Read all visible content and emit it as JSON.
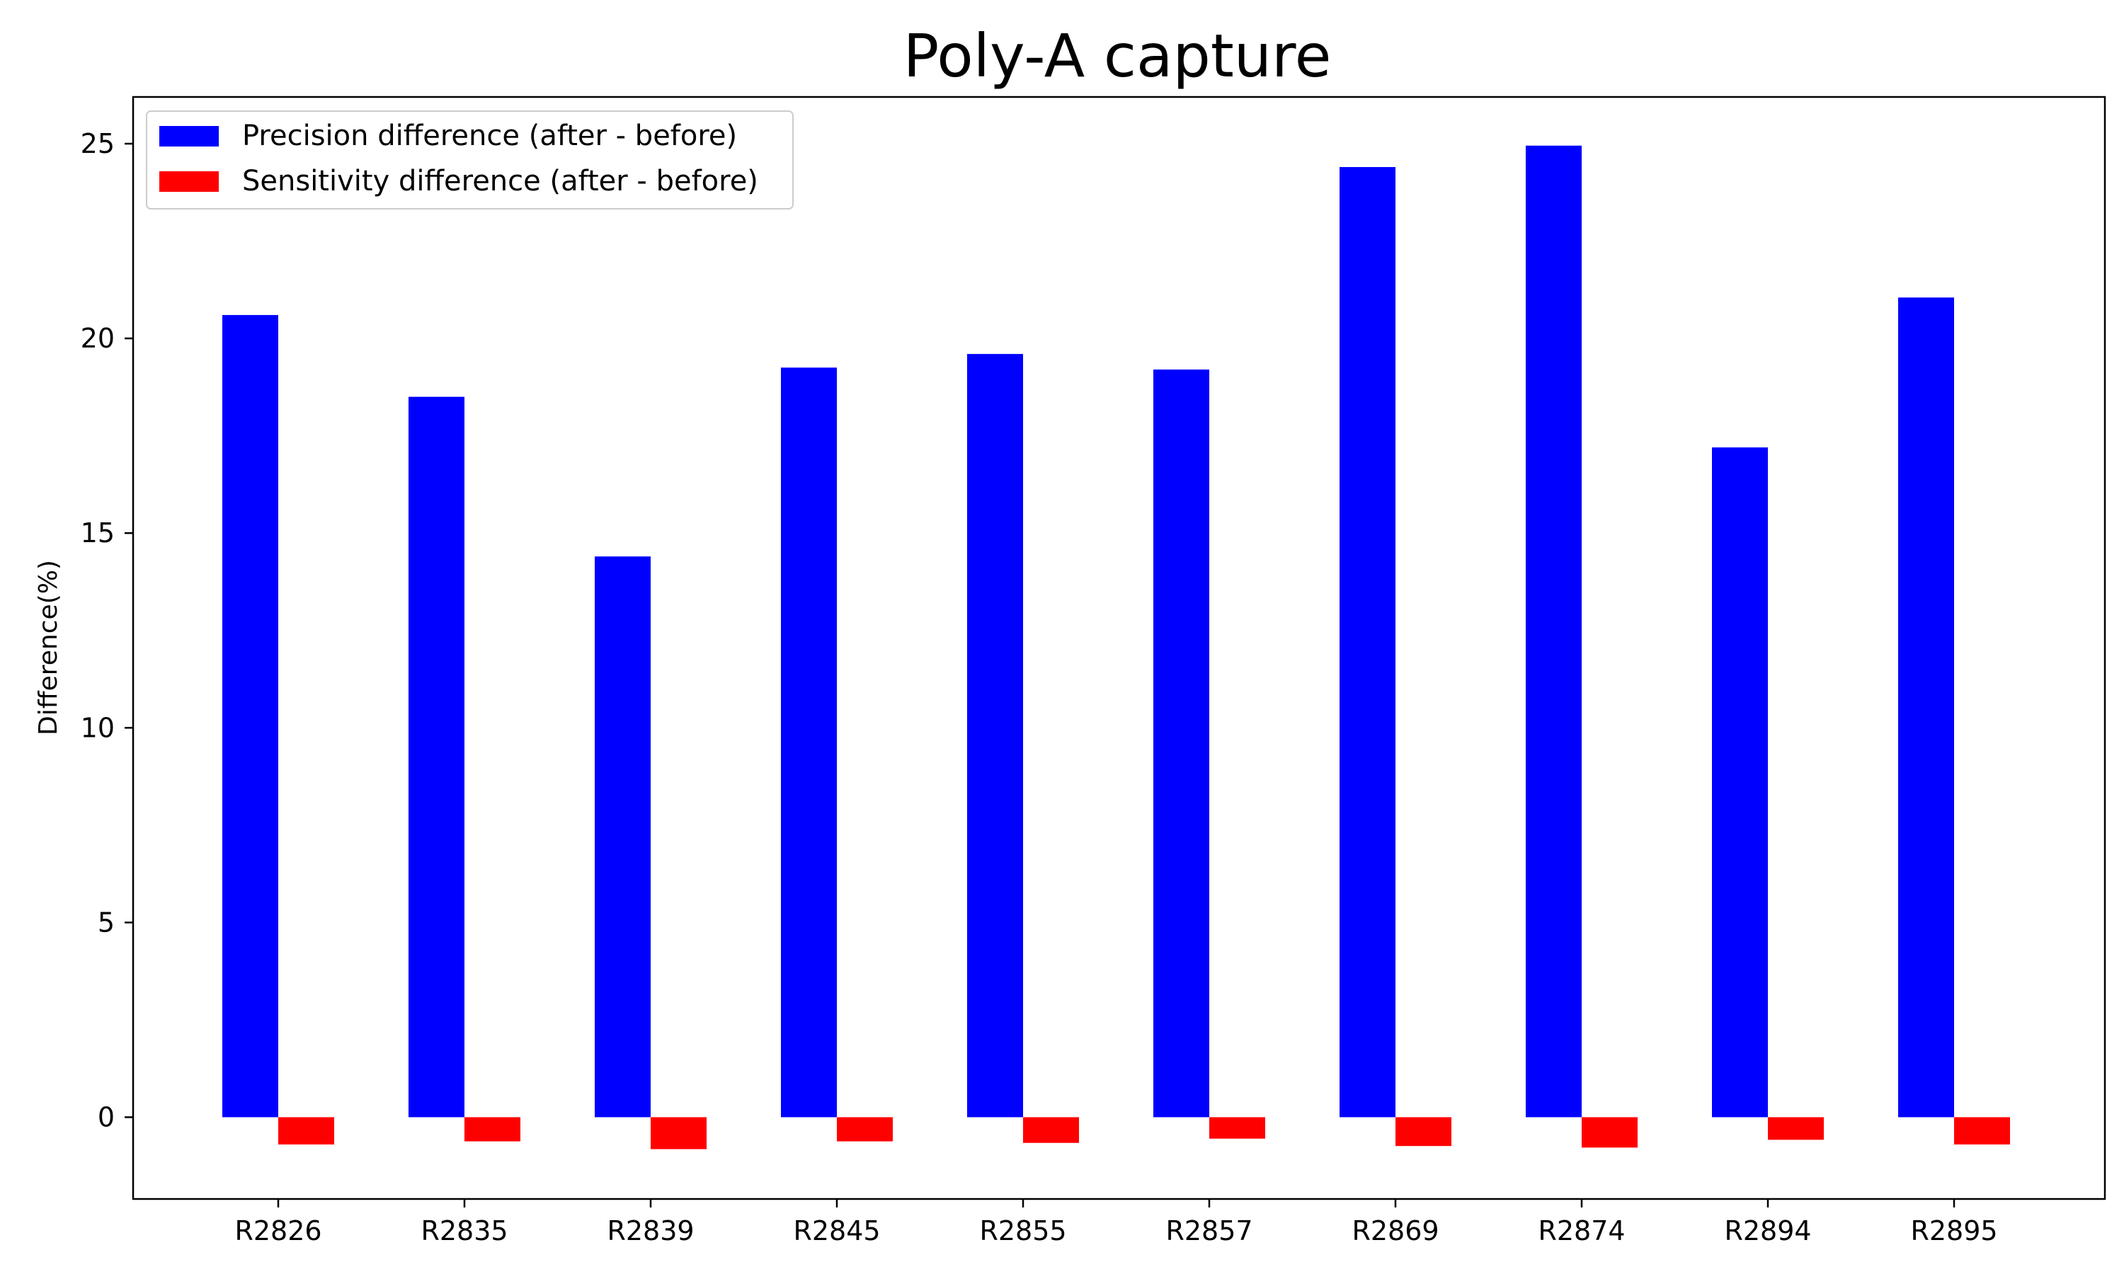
{
  "chart_data": {
    "type": "bar",
    "title": "Poly-A capture",
    "xlabel": "",
    "ylabel": "Difference(%)",
    "categories": [
      "R2826",
      "R2835",
      "R2839",
      "R2845",
      "R2855",
      "R2857",
      "R2869",
      "R2874",
      "R2894",
      "R2895"
    ],
    "series": [
      {
        "name": "Precision difference (after - before)",
        "color": "#0000ff",
        "values": [
          20.6,
          18.5,
          14.4,
          19.25,
          19.6,
          19.2,
          24.4,
          24.95,
          17.2,
          21.05
        ]
      },
      {
        "name": "Sensitivity difference (after - before)",
        "color": "#ff0000",
        "values": [
          -0.7,
          -0.62,
          -0.82,
          -0.62,
          -0.66,
          -0.55,
          -0.74,
          -0.78,
          -0.58,
          -0.7
        ]
      }
    ],
    "ylim": [
      -2.1,
      26.2
    ],
    "yticks": [
      0,
      5,
      10,
      15,
      20,
      25
    ],
    "grid": false,
    "legend": "top-left"
  }
}
